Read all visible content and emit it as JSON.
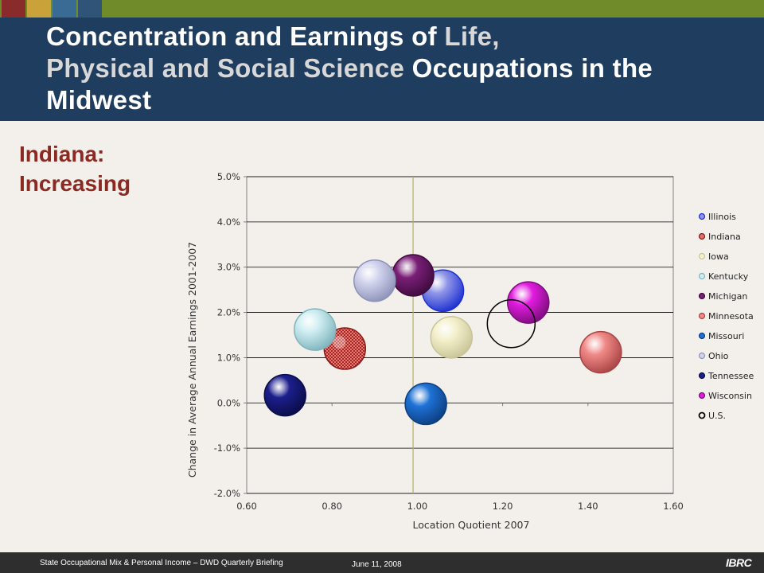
{
  "slide": {
    "title_part1": "Concentration and Earnings of ",
    "title_highlight1": "Life,",
    "title_highlight2": "Physical and Social Science",
    "title_part2": " Occupations in the Midwest",
    "subtitle_line1": "Indiana:",
    "subtitle_line2": "Increasing",
    "footer_left": "State Occupational Mix & Personal Income – DWD Quarterly Briefing",
    "footer_date": "June 11, 2008",
    "footer_logo": "IBRC",
    "top_squares": [
      "#8a2b2b",
      "#c9a23a",
      "#3a6b95",
      "#2f5478"
    ]
  },
  "chart_data": {
    "type": "scatter",
    "xlabel": "Location Quotient 2007",
    "ylabel": "Change in Average Annual Earnings 2001-2007",
    "xlim": [
      0.6,
      1.6
    ],
    "ylim": [
      -0.02,
      0.05
    ],
    "x_ticks": [
      "0.60",
      "0.80",
      "1.00",
      "1.20",
      "1.40",
      "1.60"
    ],
    "y_ticks": [
      "-2.0%",
      "-1.0%",
      "0.0%",
      "1.0%",
      "2.0%",
      "3.0%",
      "4.0%",
      "5.0%"
    ],
    "reference_line_x": 0.99,
    "grid": "horizontal",
    "legend_position": "right",
    "series": [
      {
        "name": "Illinois",
        "x": 1.06,
        "y": 0.0248,
        "color": "#8f96e8",
        "edge": "#1d2fd0"
      },
      {
        "name": "Indiana",
        "x": 0.83,
        "y": 0.012,
        "color": "#e0706c",
        "edge": "#8a1a18",
        "pattern": true
      },
      {
        "name": "Iowa",
        "x": 1.08,
        "y": 0.0145,
        "color": "#f4f1cc",
        "edge": "#c9c497"
      },
      {
        "name": "Kentucky",
        "x": 0.76,
        "y": 0.0162,
        "color": "#cfeef2",
        "edge": "#7fb4bc"
      },
      {
        "name": "Michigan",
        "x": 0.99,
        "y": 0.0282,
        "color": "#7a1f78",
        "edge": "#3e0b3d"
      },
      {
        "name": "Minnesota",
        "x": 1.43,
        "y": 0.0112,
        "color": "#f08a88",
        "edge": "#a84444"
      },
      {
        "name": "Missouri",
        "x": 1.02,
        "y": -0.0002,
        "color": "#1e72d6",
        "edge": "#0d3e80"
      },
      {
        "name": "Ohio",
        "x": 0.9,
        "y": 0.027,
        "color": "#d2d4ee",
        "edge": "#8e92b8"
      },
      {
        "name": "Tennessee",
        "x": 0.69,
        "y": 0.0017,
        "color": "#1c1f8c",
        "edge": "#0a0c48"
      },
      {
        "name": "Wisconsin",
        "x": 1.26,
        "y": 0.0222,
        "color": "#e21ce0",
        "edge": "#7c0d7b"
      },
      {
        "name": "U.S.",
        "x": 1.22,
        "y": 0.0175,
        "color": "none",
        "edge": "#000000"
      }
    ]
  }
}
